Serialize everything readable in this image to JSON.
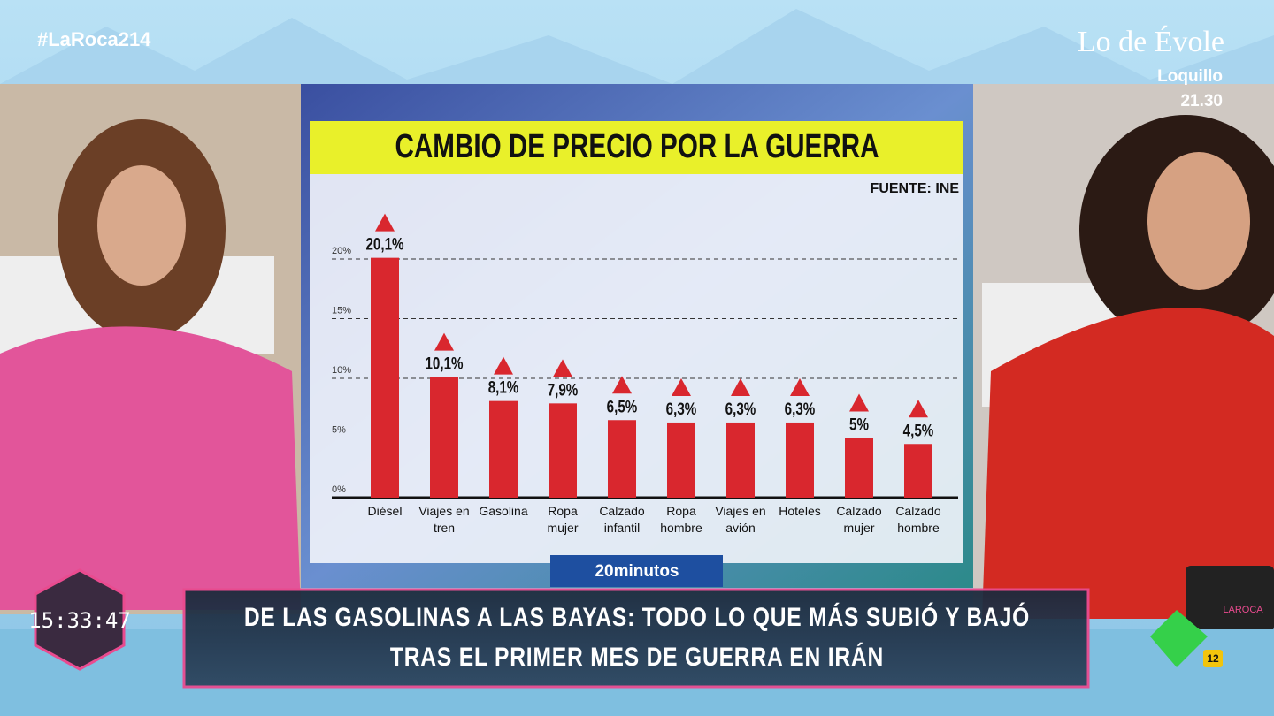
{
  "chart_data": {
    "type": "bar",
    "title": "CAMBIO DE PRECIO POR LA GUERRA",
    "source": "FUENTE: INE",
    "credit": "20minutos",
    "categories": [
      "Diésel",
      "Viajes en tren",
      "Gasolina",
      "Ropa mujer",
      "Calzado infantil",
      "Ropa hombre",
      "Viajes en avión",
      "Hoteles",
      "Calzado mujer",
      "Calzado hombre"
    ],
    "values": [
      20.1,
      10.1,
      8.1,
      7.9,
      6.5,
      6.3,
      6.3,
      6.3,
      5,
      4.5
    ],
    "value_labels": [
      "20,1%",
      "10,1%",
      "8,1%",
      "7,9%",
      "6,5%",
      "6,3%",
      "6,3%",
      "6,3%",
      "5%",
      "4,5%"
    ],
    "color": "#d9272e",
    "marker_color": "#d9272e",
    "ylim": [
      0,
      22
    ],
    "yticks": [
      {
        "value": 0,
        "label": "0%"
      },
      {
        "value": 5,
        "label": "5%"
      },
      {
        "value": 10,
        "label": "10%"
      },
      {
        "value": 15,
        "label": "15%"
      },
      {
        "value": 20,
        "label": "20%"
      }
    ],
    "grid": true
  },
  "overlay": {
    "hashtag": "#LaRoca214",
    "promo_title": "Lo de Évole",
    "promo_guest": "Loquillo",
    "promo_time": "21.30",
    "clock": "15:33:47",
    "headline": [
      "DE LAS GASOLINAS A LAS BAYAS: TODO LO QUE MÁS SUBIÓ Y BAJÓ",
      "TRAS EL PRIMER MES DE GUERRA EN IRÁN"
    ],
    "mug_logo": "LAROCA",
    "rating": "12"
  }
}
